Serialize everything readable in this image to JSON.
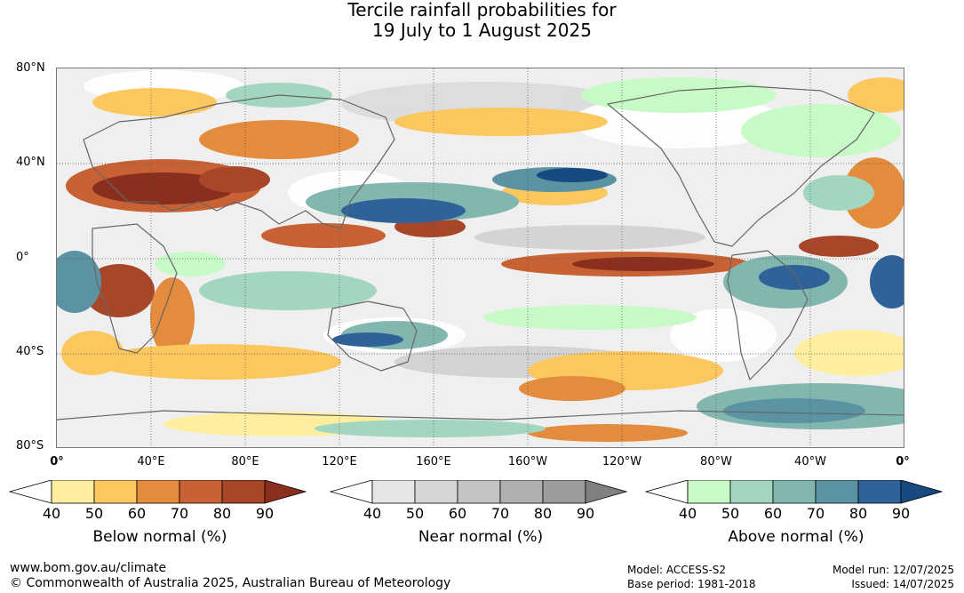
{
  "title": {
    "line1": "Tercile rainfall probabilities for",
    "line2": "19 July to 1 August 2025"
  },
  "map": {
    "lat_labels": [
      "80°N",
      "40°N",
      "0°",
      "40°S",
      "80°S"
    ],
    "lon_labels": [
      "0°",
      "40°E",
      "80°E",
      "120°E",
      "160°E",
      "160°W",
      "120°W",
      "80°W",
      "40°W",
      "0°"
    ]
  },
  "legends": [
    {
      "caption": "Below normal (%)",
      "ticks": [
        "40",
        "50",
        "60",
        "70",
        "80",
        "90"
      ],
      "colors": [
        "#ffffff",
        "#fdeea0",
        "#fcc75e",
        "#e38c3e",
        "#c86234",
        "#a8462a",
        "#8a2e1e"
      ]
    },
    {
      "caption": "Near normal (%)",
      "ticks": [
        "40",
        "50",
        "60",
        "70",
        "80",
        "90"
      ],
      "colors": [
        "#ffffff",
        "#e6e6e6",
        "#d5d5d5",
        "#c3c3c3",
        "#b0b0b0",
        "#9c9c9c",
        "#808080"
      ]
    },
    {
      "caption": "Above normal (%)",
      "ticks": [
        "40",
        "50",
        "60",
        "70",
        "80",
        "90"
      ],
      "colors": [
        "#ffffff",
        "#c8fac8",
        "#a3d6be",
        "#82b7b0",
        "#5b93a3",
        "#2f6298",
        "#174a80"
      ]
    }
  ],
  "footer": {
    "url": "www.bom.gov.au/climate",
    "copyright": "© Commonwealth of Australia 2025, Australian Bureau of Meteorology",
    "model": "Model: ACCESS-S2",
    "base_period": "Base period: 1981-2018",
    "model_run": "Model run: 12/07/2025",
    "issued": "Issued: 14/07/2025"
  }
}
